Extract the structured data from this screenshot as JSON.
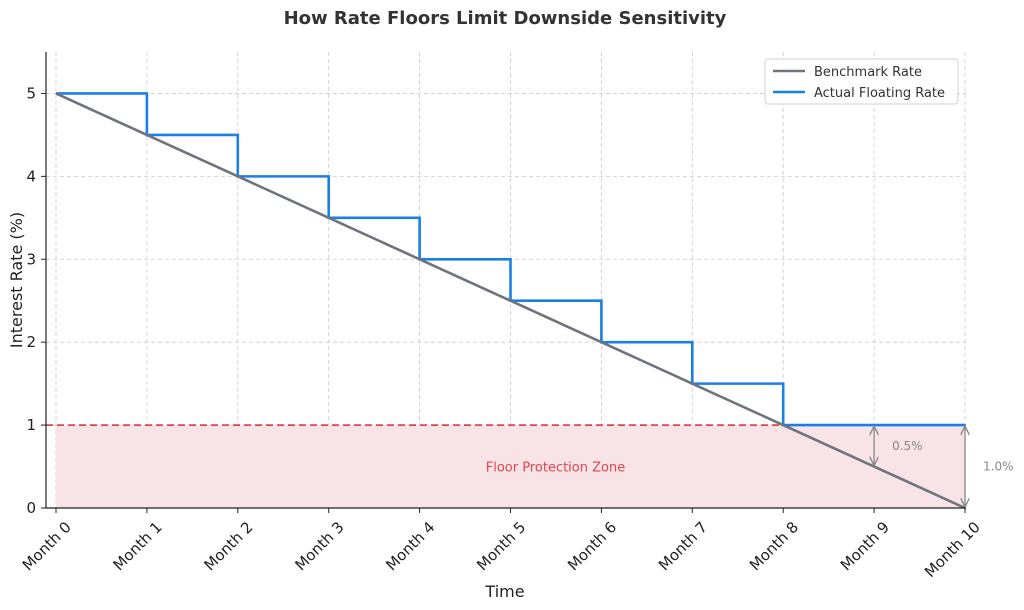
{
  "chart_data": {
    "type": "line",
    "title": "How Rate Floors Limit Downside Sensitivity",
    "xlabel": "Time",
    "ylabel": "Interest Rate (%)",
    "categories": [
      "Month 0",
      "Month 1",
      "Month 2",
      "Month 3",
      "Month 4",
      "Month 5",
      "Month 6",
      "Month 7",
      "Month 8",
      "Month 9",
      "Month 10"
    ],
    "y_ticks": [
      "0",
      "1",
      "2",
      "3",
      "4",
      "5"
    ],
    "ylim": [
      0,
      5.5
    ],
    "grid": true,
    "legend_position": "top-right",
    "series": [
      {
        "name": "Benchmark Rate",
        "style": "line",
        "color": "#6e737c",
        "values": [
          5.0,
          4.5,
          4.0,
          3.5,
          3.0,
          2.5,
          2.0,
          1.5,
          1.0,
          0.5,
          0.0
        ]
      },
      {
        "name": "Actual Floating Rate",
        "style": "step-post",
        "color": "#1a7fe6",
        "values": [
          5.0,
          4.5,
          4.0,
          3.5,
          3.0,
          2.5,
          2.0,
          1.5,
          1.0,
          1.0,
          1.0
        ]
      }
    ],
    "floor": {
      "value": 1.0,
      "line_color": "#e0444e",
      "fill_color": "#f8e4e6",
      "zone_label": "Floor Protection Zone"
    },
    "annotations": [
      {
        "label": "0.5%",
        "x_index": 9,
        "from": 0.5,
        "to": 1.0
      },
      {
        "label": "1.0%",
        "x_index": 10,
        "from": 0.0,
        "to": 1.0
      }
    ]
  }
}
